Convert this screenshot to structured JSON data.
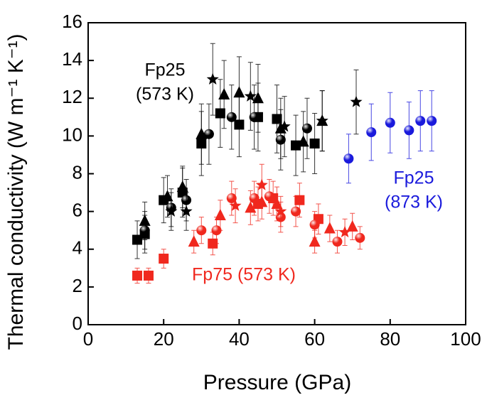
{
  "chart_data": {
    "type": "scatter",
    "xlabel": "Pressure (GPa)",
    "ylabel": "Thermal conductivity (W m⁻¹ K⁻¹)",
    "xlim": [
      0,
      100
    ],
    "xticks": [
      0,
      20,
      40,
      60,
      80,
      100
    ],
    "ylim": [
      0,
      16
    ],
    "yticks": [
      0,
      2,
      4,
      6,
      8,
      10,
      12,
      14,
      16
    ],
    "annotations": [
      {
        "lines": [
          "Fp25",
          "(573 K)"
        ],
        "color": "#000000"
      },
      {
        "lines": [
          "Fp25",
          "(873 K)"
        ],
        "color": "#1a1adc"
      },
      {
        "lines": [
          "Fp75 (573 K)"
        ],
        "color": "#f0281e"
      }
    ],
    "series": [
      {
        "marker": "square",
        "color": "#000000",
        "x": [
          13,
          15,
          20,
          25,
          30,
          35,
          40,
          45,
          50,
          55,
          60
        ],
        "values": [
          4.5,
          4.8,
          6.6,
          7.0,
          9.6,
          11.2,
          10.6,
          11.0,
          10.9,
          9.5,
          9.6
        ],
        "errors": [
          1.0,
          1.0,
          1.2,
          1.3,
          1.7,
          1.8,
          1.7,
          1.8,
          1.8,
          1.6,
          1.6
        ]
      },
      {
        "marker": "triangle",
        "color": "#000000",
        "x": [
          15,
          21,
          25,
          30,
          36,
          40,
          45,
          51,
          57,
          62
        ],
        "values": [
          5.5,
          6.8,
          7.3,
          10.1,
          12.2,
          12.3,
          12.0,
          10.4,
          9.7,
          10.8
        ],
        "errors": [
          1.0,
          1.1,
          1.1,
          1.6,
          1.8,
          1.9,
          1.8,
          1.6,
          1.6,
          1.6
        ]
      },
      {
        "marker": "circle",
        "color": "#000000",
        "x": [
          15,
          22,
          26,
          32,
          38,
          44,
          51,
          58
        ],
        "values": [
          5.0,
          6.2,
          6.6,
          10.1,
          11.0,
          11.0,
          9.8,
          10.4
        ],
        "errors": [
          1.0,
          1.0,
          1.1,
          1.6,
          1.7,
          1.7,
          1.6,
          1.6
        ]
      },
      {
        "marker": "star",
        "color": "#000000",
        "x": [
          22,
          26,
          33,
          43,
          52,
          62,
          71
        ],
        "values": [
          6.0,
          6.0,
          13.0,
          12.1,
          10.5,
          10.8,
          11.8
        ],
        "errors": [
          1.0,
          1.0,
          1.9,
          1.8,
          1.6,
          1.6,
          1.7
        ]
      },
      {
        "marker": "circle",
        "color": "#1a1adc",
        "x": [
          69,
          75,
          80,
          85,
          88,
          91
        ],
        "values": [
          8.8,
          10.2,
          10.7,
          10.3,
          10.8,
          10.8
        ],
        "errors": [
          1.3,
          1.5,
          1.6,
          1.5,
          1.6,
          1.6
        ]
      },
      {
        "marker": "square",
        "color": "#f0281e",
        "x": [
          13,
          16,
          20,
          33,
          45,
          49,
          56,
          61
        ],
        "values": [
          2.6,
          2.6,
          3.5,
          4.3,
          6.4,
          6.7,
          6.6,
          5.6
        ],
        "errors": [
          0.4,
          0.4,
          0.5,
          0.6,
          0.9,
          0.9,
          0.9,
          0.8
        ]
      },
      {
        "marker": "triangle",
        "color": "#f0281e",
        "x": [
          28,
          35,
          43,
          46,
          50,
          60,
          64,
          70
        ],
        "values": [
          4.4,
          5.8,
          6.2,
          6.5,
          6.4,
          4.4,
          5.1,
          5.2
        ],
        "errors": [
          0.6,
          0.8,
          0.9,
          0.9,
          0.9,
          0.6,
          0.7,
          0.7
        ]
      },
      {
        "marker": "circle",
        "color": "#f0281e",
        "x": [
          30,
          34,
          38,
          44,
          48,
          51,
          55,
          60,
          66,
          72
        ],
        "values": [
          5.0,
          5.0,
          6.7,
          6.7,
          6.8,
          5.7,
          6.0,
          5.3,
          4.4,
          4.6
        ],
        "errors": [
          0.7,
          0.7,
          0.9,
          0.9,
          0.9,
          0.8,
          0.8,
          0.7,
          0.6,
          0.6
        ]
      },
      {
        "marker": "star",
        "color": "#f0281e",
        "x": [
          39,
          46,
          51,
          68
        ],
        "values": [
          6.3,
          7.4,
          6.0,
          4.9
        ],
        "errors": [
          0.9,
          1.1,
          0.8,
          0.7
        ]
      }
    ]
  }
}
